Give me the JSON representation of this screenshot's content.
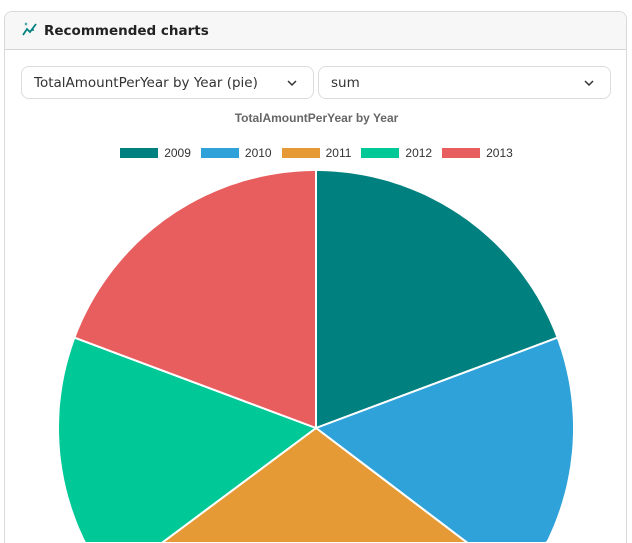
{
  "header": {
    "title": "Recommended charts",
    "icon": "sparkle-chart-icon"
  },
  "controls": {
    "chart_select": "TotalAmountPerYear by Year (pie)",
    "aggregation_select": "sum"
  },
  "chart_data": {
    "type": "pie",
    "title": "TotalAmountPerYear by Year",
    "categories": [
      "2009",
      "2010",
      "2011",
      "2012",
      "2013"
    ],
    "values": [
      19.3,
      20.7,
      20.2,
      20.5,
      19.3
    ],
    "value_unit": "percent of total (estimated)",
    "colors": [
      "#00807e",
      "#30a2da",
      "#e69a35",
      "#00c896",
      "#e85e5e"
    ],
    "legend": "top"
  }
}
